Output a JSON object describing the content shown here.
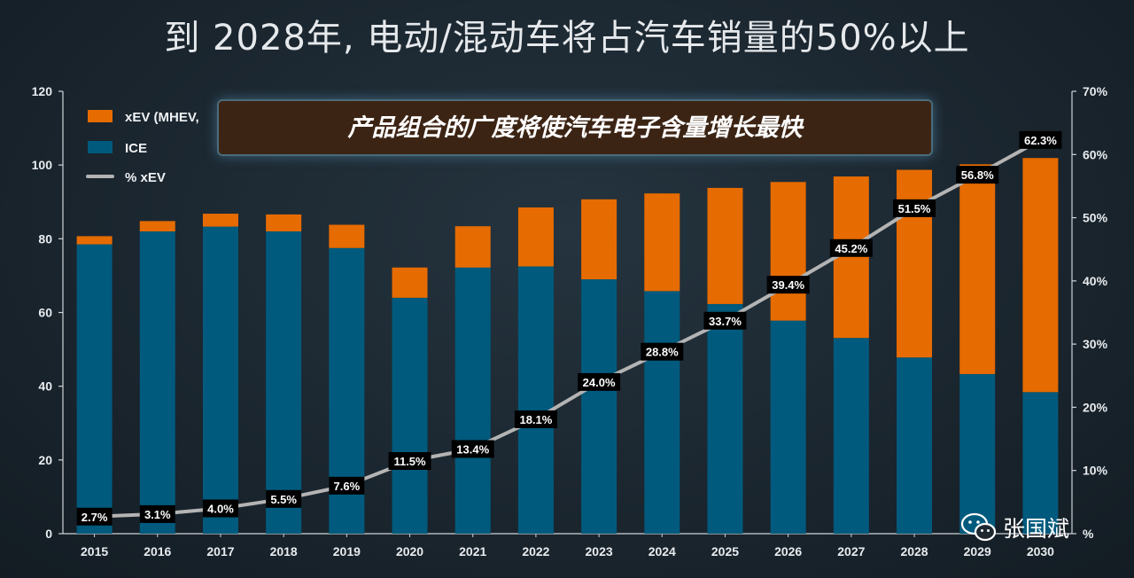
{
  "title": "到 2028年, 电动/混动车将占汽车销量的50%以上",
  "callout": "产品组合的广度将使汽车电子含量增长最快",
  "watermark": "张国斌",
  "colors": {
    "xev": "#e66b00",
    "ice": "#005a7d",
    "line": "#b4b4b4",
    "background": "#1d2830"
  },
  "chart_data": {
    "type": "bar",
    "stacked": true,
    "categories": [
      "2015",
      "2016",
      "2017",
      "2018",
      "2019",
      "2020",
      "2021",
      "2022",
      "2023",
      "2024",
      "2025",
      "2026",
      "2027",
      "2028",
      "2029",
      "2030"
    ],
    "series": [
      {
        "name": "ICE",
        "values": [
          78.5,
          82.0,
          83.3,
          82.0,
          77.5,
          64.0,
          72.2,
          72.5,
          69.0,
          65.8,
          62.3,
          57.8,
          53.1,
          47.8,
          43.3,
          38.4
        ]
      },
      {
        "name": "xEV (MHEV,",
        "values": [
          2.2,
          2.8,
          3.5,
          4.6,
          6.3,
          8.2,
          11.2,
          16.0,
          21.7,
          26.5,
          31.5,
          37.6,
          43.8,
          50.9,
          56.9,
          63.5
        ]
      }
    ],
    "line_series": {
      "name": "% xEV",
      "axis": "right",
      "values": [
        2.7,
        3.1,
        4.0,
        5.5,
        7.6,
        11.5,
        13.4,
        18.1,
        24.0,
        28.8,
        33.7,
        39.4,
        45.2,
        51.5,
        56.8,
        62.3
      ],
      "labels": [
        "2.7%",
        "3.1%",
        "4.0%",
        "5.5%",
        "7.6%",
        "11.5%",
        "13.4%",
        "18.1%",
        "24.0%",
        "28.8%",
        "33.7%",
        "39.4%",
        "45.2%",
        "51.5%",
        "56.8%",
        "62.3%"
      ]
    },
    "y_left": {
      "ylim": [
        0,
        120
      ],
      "ticks": [
        "0",
        "20",
        "40",
        "60",
        "80",
        "100",
        "120"
      ]
    },
    "y_right": {
      "ylim": [
        0,
        70
      ],
      "ticks": [
        "%",
        "10%",
        "20%",
        "30%",
        "40%",
        "50%",
        "60%",
        "70%"
      ]
    },
    "legend": [
      "xEV (MHEV,",
      "ICE",
      "% xEV"
    ],
    "legend_position": "top-left"
  }
}
